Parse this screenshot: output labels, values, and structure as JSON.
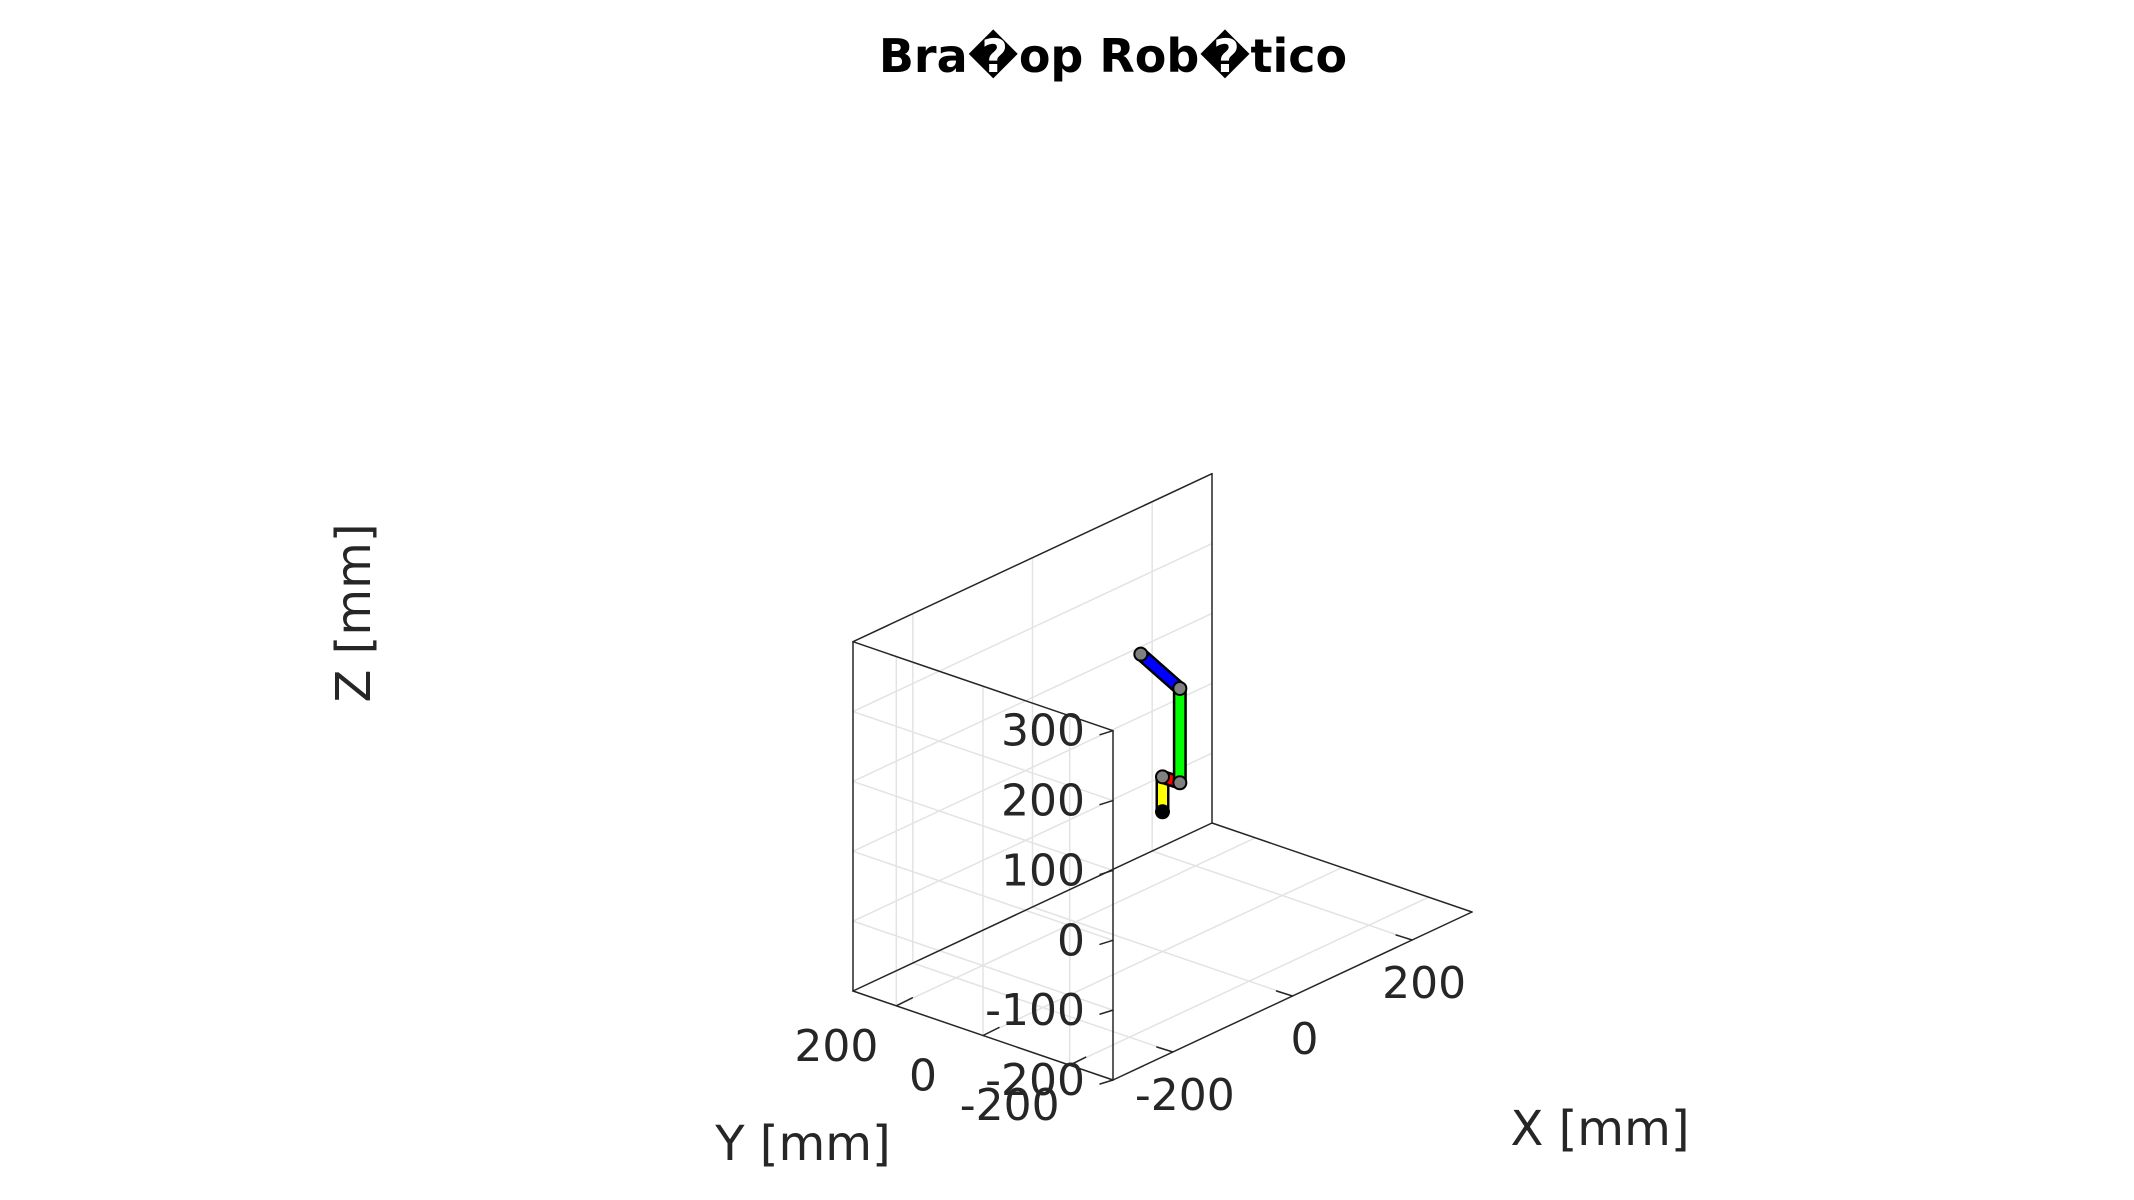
{
  "chart_data": {
    "type": "line3d",
    "title": "Bra�op Rob�tico",
    "xlabel": "X [mm]",
    "ylabel": "Y [mm]",
    "zlabel": "Z [mm]",
    "xlim": [
      -300,
      300
    ],
    "ylim": [
      -300,
      300
    ],
    "zlim": [
      -200,
      300
    ],
    "xticks": [
      {
        "value": -200,
        "label": "-200"
      },
      {
        "value": 0,
        "label": "0"
      },
      {
        "value": 200,
        "label": "200"
      }
    ],
    "yticks": [
      {
        "value": -200,
        "label": "-200"
      },
      {
        "value": 0,
        "label": "0"
      },
      {
        "value": 200,
        "label": "200"
      }
    ],
    "zticks": [
      {
        "value": -200,
        "label": "-200"
      },
      {
        "value": -100,
        "label": "-100"
      },
      {
        "value": 0,
        "label": "0"
      },
      {
        "value": 100,
        "label": "100"
      },
      {
        "value": 200,
        "label": "200"
      },
      {
        "value": 300,
        "label": "300"
      }
    ],
    "grid": true,
    "links": [
      {
        "from": [
          0,
          0,
          0
        ],
        "to": [
          0,
          0,
          50
        ],
        "color": "#ffff00"
      },
      {
        "from": [
          0,
          0,
          50
        ],
        "to": [
          0,
          -40,
          50
        ],
        "color": "#ff0000"
      },
      {
        "from": [
          0,
          -40,
          50
        ],
        "to": [
          0,
          -40,
          185
        ],
        "color": "#00ff00"
      },
      {
        "from": [
          0,
          -40,
          185
        ],
        "to": [
          0,
          50,
          215
        ],
        "color": "#0000ff"
      }
    ],
    "joints": [
      {
        "pos": [
          0,
          0,
          0
        ],
        "color": "#000000"
      },
      {
        "pos": [
          0,
          0,
          50
        ],
        "color": "#808080"
      },
      {
        "pos": [
          0,
          -40,
          50
        ],
        "color": "#808080"
      },
      {
        "pos": [
          0,
          -40,
          185
        ],
        "color": "#808080"
      },
      {
        "pos": [
          0,
          50,
          215
        ],
        "color": "#808080"
      }
    ]
  }
}
